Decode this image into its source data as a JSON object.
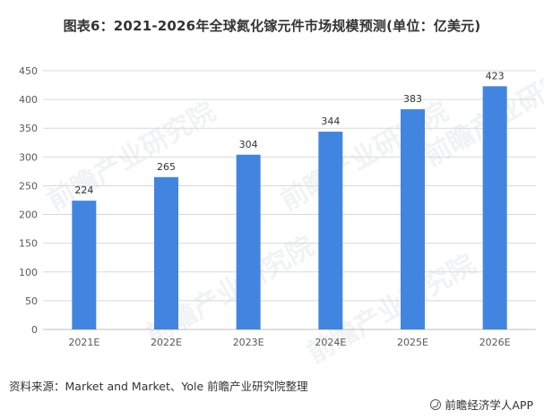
{
  "title": "图表6：2021-2026年全球氮化镓元件市场规模预测(单位：亿美元)",
  "source": "资料来源：Market and Market、Yole 前瞻产业研究院整理",
  "brand": "前瞻经济学人APP",
  "watermark": "前瞻产业研究院",
  "colors": {
    "bar": "#4285e0",
    "grid": "#d9d9d9",
    "axis": "#bfbfbf",
    "text": "#595959"
  },
  "chart_data": {
    "type": "bar",
    "categories": [
      "2021E",
      "2022E",
      "2023E",
      "2024E",
      "2025E",
      "2026E"
    ],
    "values": [
      224,
      265,
      304,
      344,
      383,
      423
    ],
    "ylim": [
      0,
      450
    ],
    "yticks": [
      0,
      50,
      100,
      150,
      200,
      250,
      300,
      350,
      400,
      450
    ],
    "grid": true,
    "legend": "none"
  }
}
